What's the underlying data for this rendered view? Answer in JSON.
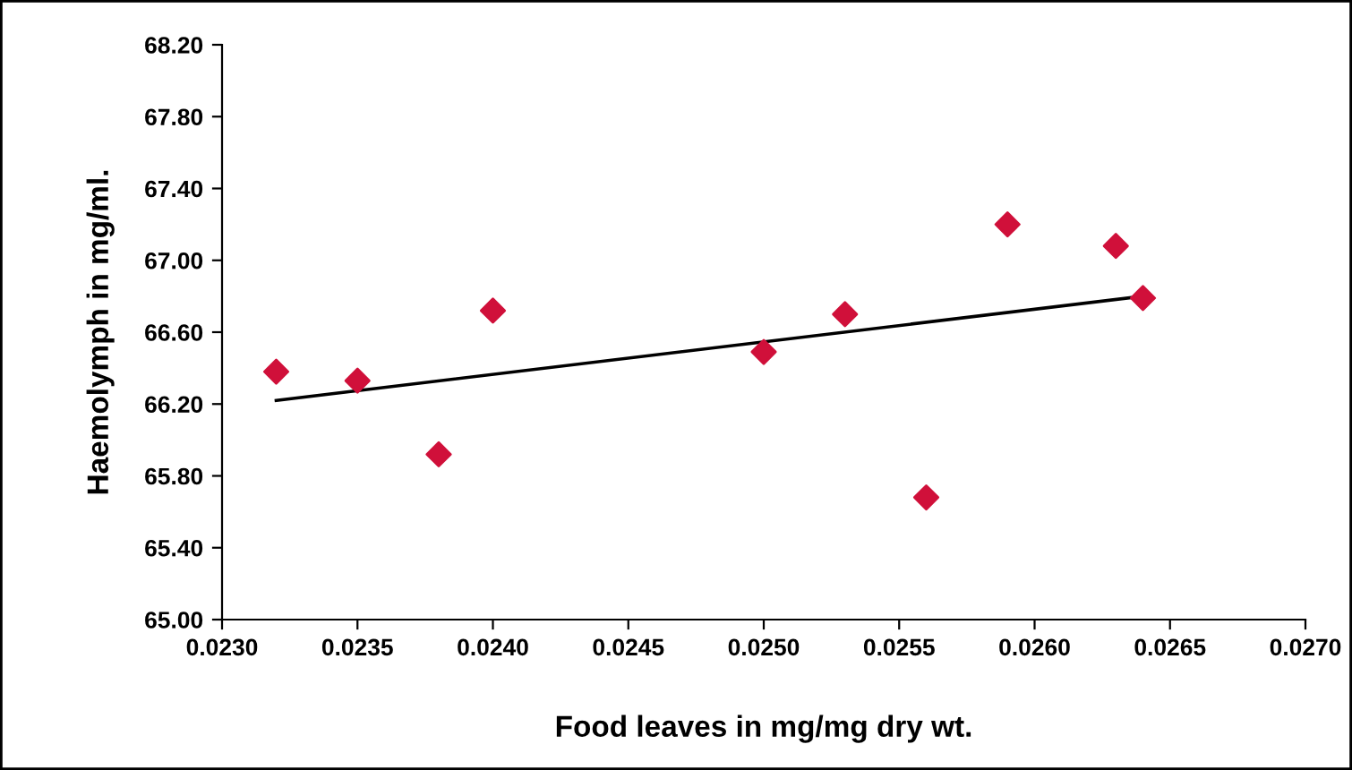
{
  "chart_data": {
    "type": "scatter",
    "xlabel": "Food leaves in mg/mg dry wt.",
    "ylabel": "Haemolymph in mg/ml.",
    "series": [
      {
        "color": "#d0103a",
        "marker": "diamond",
        "x": [
          0.0232,
          0.0235,
          0.0238,
          0.024,
          0.025,
          0.0253,
          0.0256,
          0.0259,
          0.0263,
          0.0264
        ],
        "values": [
          66.38,
          66.33,
          65.92,
          66.72,
          66.49,
          66.7,
          65.68,
          67.2,
          67.08,
          66.79
        ]
      },
      {
        "type": "line",
        "color": "#000000",
        "marker": "none",
        "x": [
          0.0232,
          0.0264
        ],
        "values": [
          66.22,
          66.8
        ]
      }
    ],
    "xlim": [
      0.023,
      0.027
    ],
    "xticks": [
      {
        "value": 0.023,
        "label": "0.0230"
      },
      {
        "value": 0.0235,
        "label": "0.0235"
      },
      {
        "value": 0.024,
        "label": "0.0240"
      },
      {
        "value": 0.0245,
        "label": "0.0245"
      },
      {
        "value": 0.025,
        "label": "0.0250"
      },
      {
        "value": 0.0255,
        "label": "0.0255"
      },
      {
        "value": 0.026,
        "label": "0.0260"
      },
      {
        "value": 0.0265,
        "label": "0.0265"
      },
      {
        "value": 0.027,
        "label": "0.0270"
      }
    ],
    "ylim": [
      65.0,
      68.2
    ],
    "yticks": [
      {
        "value": 65.0,
        "label": "65.00"
      },
      {
        "value": 65.4,
        "label": "65.40"
      },
      {
        "value": 65.8,
        "label": "65.80"
      },
      {
        "value": 66.2,
        "label": "66.20"
      },
      {
        "value": 66.6,
        "label": "66.60"
      },
      {
        "value": 67.0,
        "label": "67.00"
      },
      {
        "value": 67.4,
        "label": "67.40"
      },
      {
        "value": 67.8,
        "label": "67.80"
      },
      {
        "value": 68.2,
        "label": "68.20"
      }
    ],
    "grid": false,
    "legend": false
  }
}
